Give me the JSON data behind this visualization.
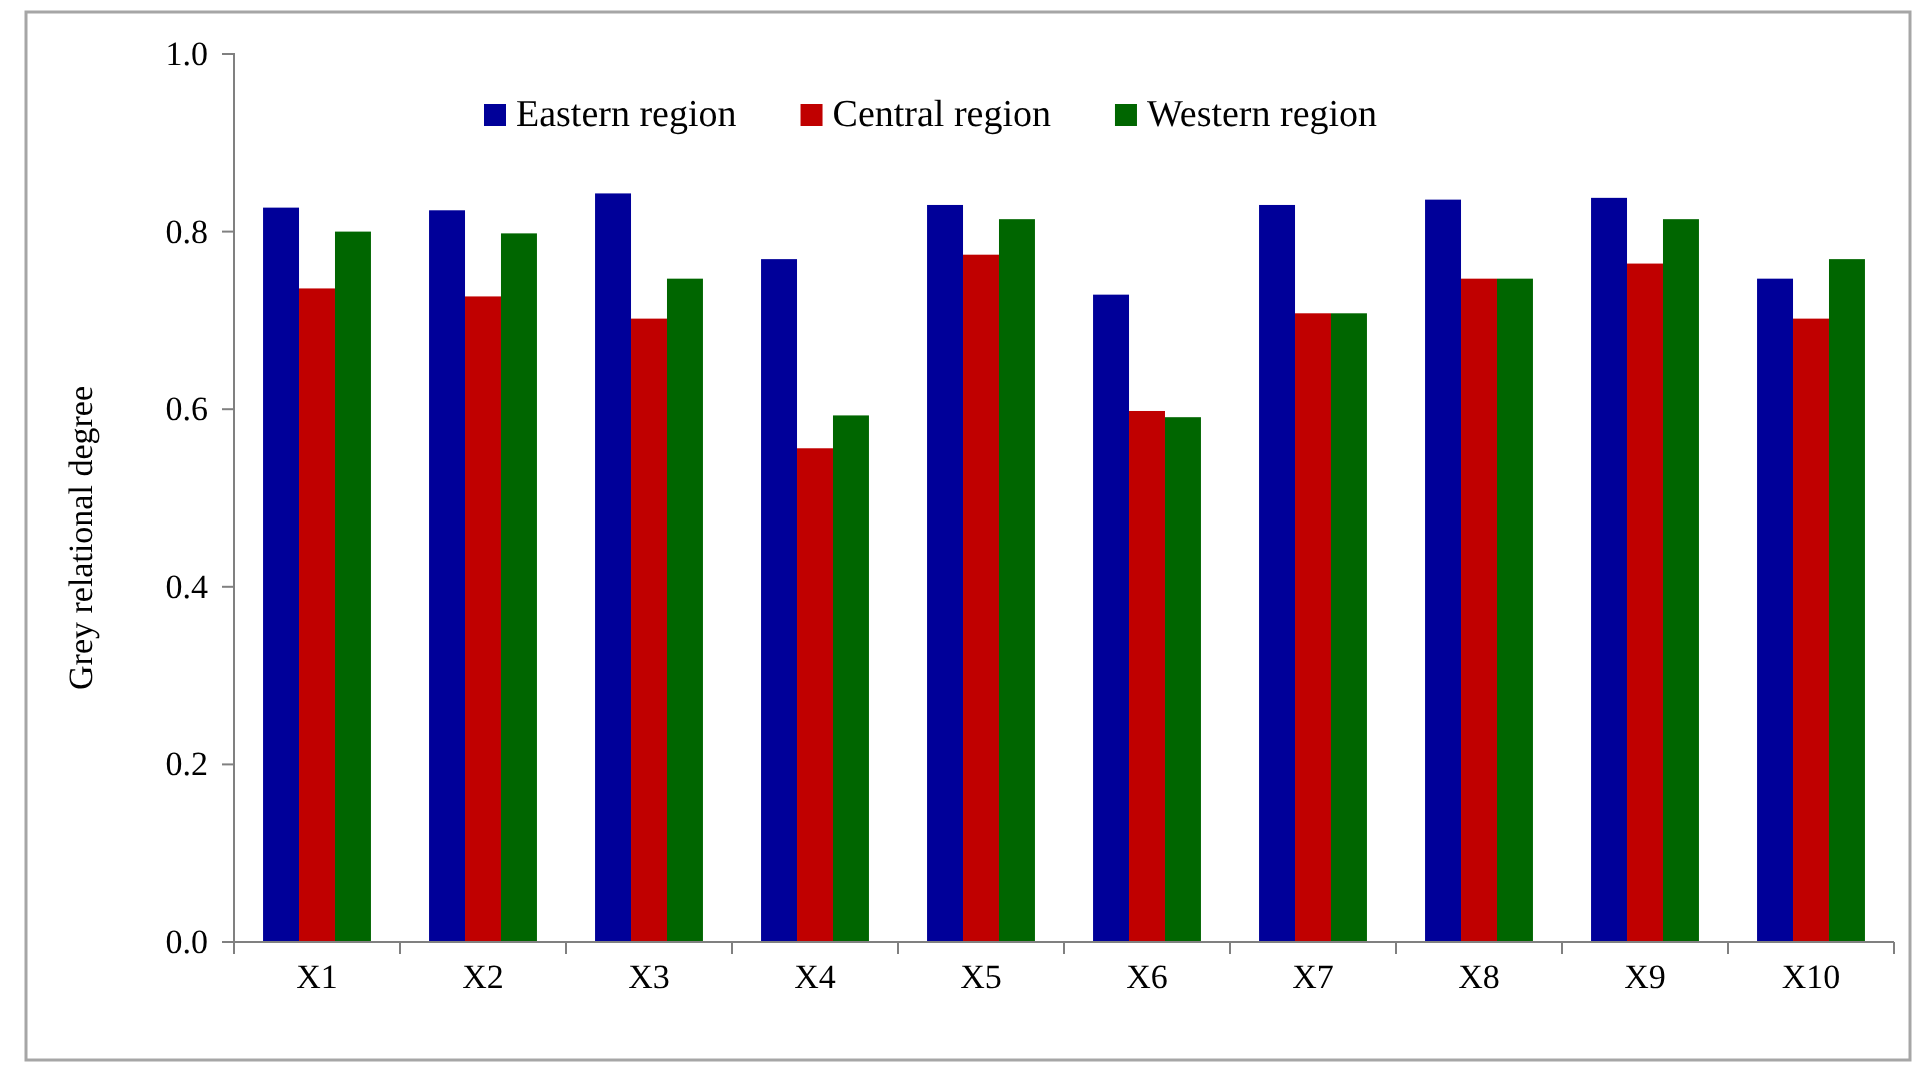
{
  "chart_data": {
    "type": "bar",
    "ylabel": "Grey relational degree",
    "categories": [
      "X1",
      "X2",
      "X3",
      "X4",
      "X5",
      "X6",
      "X7",
      "X8",
      "X9",
      "X10"
    ],
    "series": [
      {
        "name": "Eastern region",
        "color": "#000099",
        "values": [
          0.827,
          0.824,
          0.843,
          0.769,
          0.83,
          0.729,
          0.83,
          0.836,
          0.838,
          0.747
        ]
      },
      {
        "name": "Central region",
        "color": "#c00000",
        "values": [
          0.736,
          0.727,
          0.702,
          0.556,
          0.774,
          0.598,
          0.708,
          0.747,
          0.764,
          0.702
        ]
      },
      {
        "name": "Western region",
        "color": "#006600",
        "values": [
          0.8,
          0.798,
          0.747,
          0.593,
          0.814,
          0.591,
          0.708,
          0.747,
          0.814,
          0.769
        ]
      }
    ],
    "ylim": [
      0,
      1.0
    ],
    "yticks": [
      {
        "value": 0,
        "label": "0.0"
      },
      0.2,
      0.4,
      0.6,
      0.8,
      {
        "value": 1,
        "label": "1.0"
      }
    ],
    "grid": false,
    "legend": "top"
  }
}
